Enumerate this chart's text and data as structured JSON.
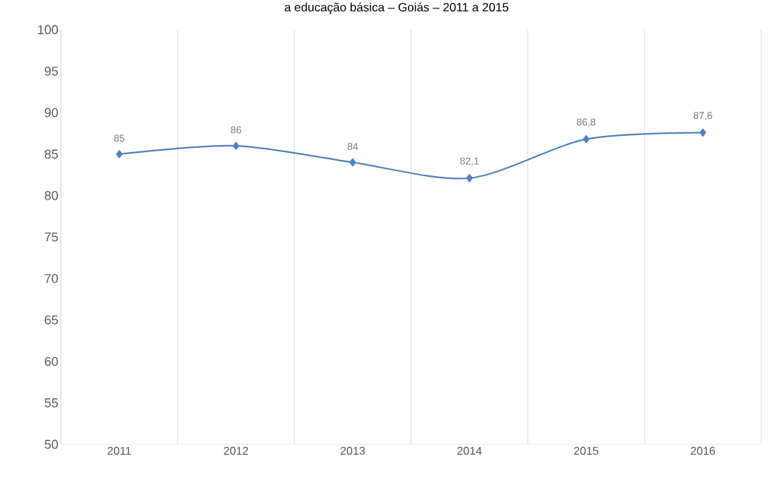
{
  "chart_data": {
    "type": "line",
    "title": "a educação básica – Goiás – 2011 a 2015",
    "categories": [
      "2011",
      "2012",
      "2013",
      "2014",
      "2015",
      "2016"
    ],
    "series": [
      {
        "color": "#4f81bd",
        "values": [
          85,
          86,
          84,
          82.1,
          86.8,
          87.6
        ],
        "value_labels": [
          "85",
          "86",
          "84",
          "82,1",
          "86,8",
          "87,6"
        ]
      }
    ],
    "ylim": [
      50,
      100
    ],
    "yticks": [
      50,
      55,
      60,
      65,
      70,
      75,
      80,
      85,
      90,
      95,
      100
    ],
    "grid": "x",
    "marker": "diamond",
    "line_style": "solid"
  }
}
